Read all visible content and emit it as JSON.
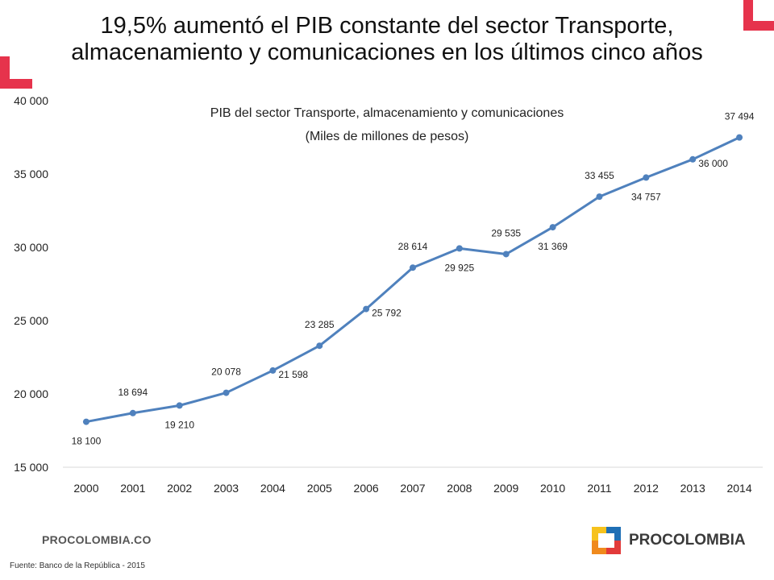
{
  "header": {
    "title_line1": "19,5% aumentó el PIB constante del sector Transporte,",
    "title_line2": "almacenamiento y comunicaciones en los últimos cinco años"
  },
  "colors": {
    "line": "#4f81bd",
    "accent_red": "#e6334c",
    "axis": "#d9d9d9",
    "text": "#222222",
    "logo_yellow": "#f6c21c",
    "logo_blue": "#1f6fb5",
    "logo_red": "#e23a3a",
    "logo_orange": "#f08a1d"
  },
  "footer": {
    "brand_url": "PROCOLOMBIA.CO",
    "source": "Fuente: Banco de la República - 2015",
    "logo_text": "PROCOLOMBIA"
  },
  "chart_data": {
    "type": "line",
    "title": "PIB del sector Transporte, almacenamiento y comunicaciones",
    "subtitle": "(Miles de millones de pesos)",
    "xlabel": "",
    "ylabel": "",
    "categories": [
      "2000",
      "2001",
      "2002",
      "2003",
      "2004",
      "2005",
      "2006",
      "2007",
      "2008",
      "2009",
      "2010",
      "2011",
      "2012",
      "2013",
      "2014"
    ],
    "series": [
      {
        "name": "PIB",
        "values": [
          18100,
          18694,
          19210,
          20078,
          21598,
          23285,
          25792,
          28614,
          29925,
          29535,
          31369,
          33455,
          34757,
          36000,
          37494
        ],
        "labels": [
          "18 100",
          "18 694",
          "19 210",
          "20 078",
          "21 598",
          "23 285",
          "25 792",
          "28 614",
          "29 925",
          "29 535",
          "31 369",
          "33 455",
          "34 757",
          "36 000",
          "37 494"
        ],
        "label_positions": [
          "below",
          "above",
          "below",
          "above",
          "right",
          "above",
          "right",
          "above",
          "below",
          "above",
          "below",
          "above",
          "below",
          "right",
          "above"
        ]
      }
    ],
    "ylim": [
      15000,
      40000
    ],
    "yticks": [
      15000,
      20000,
      25000,
      30000,
      35000,
      40000
    ],
    "ytick_labels": [
      "15 000",
      "20 000",
      "25 000",
      "30 000",
      "35 000",
      "40 000"
    ],
    "grid": false,
    "legend": "none"
  }
}
